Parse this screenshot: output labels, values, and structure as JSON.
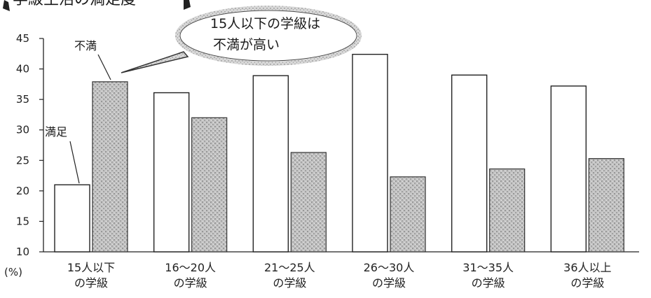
{
  "chart_data": {
    "type": "bar",
    "title": "学級生活の満足度",
    "ylabel": "(%)",
    "ylim": [
      10,
      45
    ],
    "yticks": [
      10,
      15,
      20,
      25,
      30,
      35,
      40,
      45
    ],
    "categories": [
      [
        "15人以下",
        "の学級"
      ],
      [
        "16〜20人",
        "の学級"
      ],
      [
        "21〜25人",
        "の学級"
      ],
      [
        "26〜30人",
        "の学級"
      ],
      [
        "31〜35人",
        "の学級"
      ],
      [
        "36人以上",
        "の学級"
      ]
    ],
    "series": [
      {
        "name": "満足",
        "values": [
          21.0,
          36.1,
          38.9,
          42.4,
          39.0,
          37.2
        ],
        "fill": "#ffffff"
      },
      {
        "name": "不満",
        "values": [
          37.9,
          32.0,
          26.3,
          22.3,
          23.6,
          25.3
        ],
        "fill": "#bdbdbd"
      }
    ],
    "callout": [
      "15人以下の学級は",
      "不満が高い"
    ],
    "grid": false,
    "legend": "inline-annotations"
  }
}
